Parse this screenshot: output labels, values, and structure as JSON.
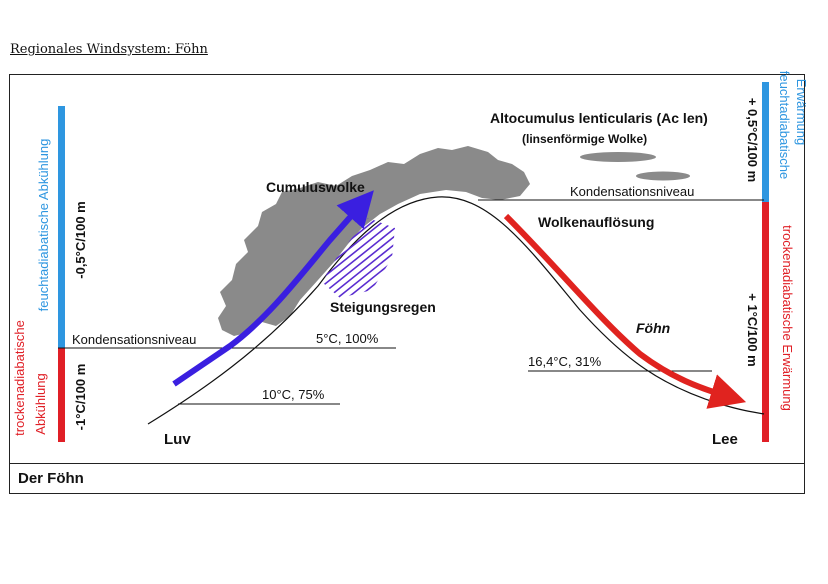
{
  "page_title": "Regionales Windsystem: Föhn",
  "caption": "Der Föhn",
  "left_axis": {
    "lower_label_line1": "trockenadiabatische",
    "lower_label_line2": "Abkühlung",
    "lower_rate": "-1°C/100 m",
    "lower_color": "#e01f26",
    "upper_label_line1": "feuchtadiabatische Abkühlung",
    "upper_rate": "-0,5°C/100 m",
    "upper_color": "#2e96e0"
  },
  "right_axis": {
    "upper_label_line1": "feuchtadiabatische",
    "upper_label_line2": "Erwärmung",
    "upper_rate": "+ 0,5°C/100 m",
    "upper_color": "#2e96e0",
    "lower_label_line1": "trockenadiabatische Erwärmung",
    "lower_rate": "+ 1°C/100 m",
    "lower_color": "#e01f26"
  },
  "labels": {
    "luv": "Luv",
    "lee": "Lee",
    "cumulus": "Cumuluswolke",
    "steigungsregen": "Steigungsregen",
    "wolkenaufloesung": "Wolkenauflösung",
    "foehn": "Föhn",
    "altocumulus_line1": "Altocumulus lenticularis (Ac len)",
    "altocumulus_line2": "(linsenförmige Wolke)",
    "kondensation_left": "Kondensationsniveau",
    "kondensation_right": "Kondensationsniveau",
    "reading_low": "10°C, 75%",
    "reading_mid": "5°C, 100%",
    "reading_lee": "16,4°C, 31%"
  },
  "colors": {
    "rising_arrow": "#3a1fe0",
    "descending_arrow": "#e0231f",
    "cloud": "#8a8a8a",
    "rain": "#5a2dd0"
  }
}
